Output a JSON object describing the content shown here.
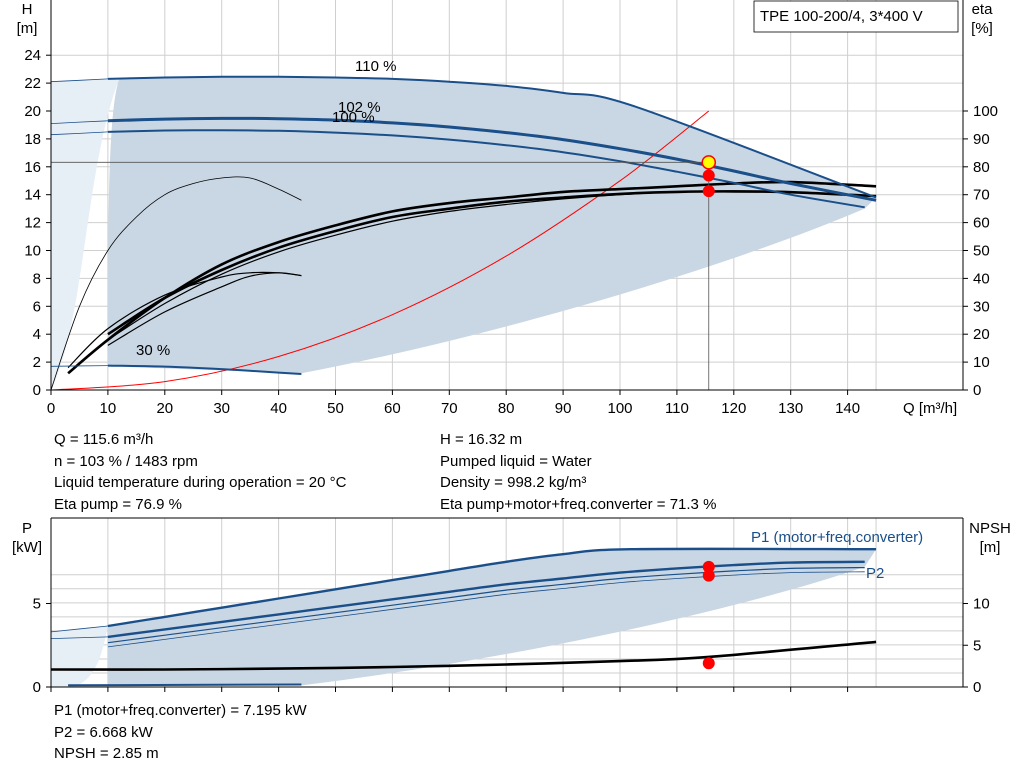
{
  "chart_data": [
    {
      "type": "line",
      "title": "TPE 100-200/4, 3*400 V",
      "xlabel": "Q [m³/h]",
      "ylabel": "H\n[m]",
      "ylabel_right": "eta\n[%]",
      "x_ticks": [
        "0",
        "10",
        "20",
        "30",
        "40",
        "50",
        "60",
        "70",
        "80",
        "90",
        "100",
        "110",
        "120",
        "130",
        "140"
      ],
      "y_ticks": [
        "0",
        "2",
        "4",
        "6",
        "8",
        "10",
        "12",
        "14",
        "16",
        "18",
        "20",
        "22",
        "24"
      ],
      "y2_ticks": [
        "0",
        "10",
        "20",
        "30",
        "40",
        "50",
        "60",
        "70",
        "80",
        "90",
        "100"
      ],
      "xlim": [
        0,
        150
      ],
      "ylim": [
        0,
        25
      ],
      "y2lim": [
        0,
        100
      ],
      "grid": true,
      "colors": {
        "curve": "#1a4f8a",
        "envelope": "#c9d6e3",
        "envelope_light": "#e6eef6",
        "eta": "#000000",
        "system": "#ff0000",
        "point": "#ff0000"
      },
      "series": [
        {
          "name": "110 %",
          "x": [
            0,
            10,
            20,
            30,
            40,
            50,
            60,
            70,
            80,
            90,
            102.8,
            145
          ],
          "values": [
            22.1,
            22.3,
            22.4,
            22.45,
            22.45,
            22.4,
            22.3,
            22.1,
            21.8,
            21.3,
            20.3,
            13.8
          ]
        },
        {
          "name": "102 %",
          "x": [
            0,
            10,
            20,
            30,
            40,
            50,
            60,
            70,
            80,
            90,
            100,
            110,
            120,
            130,
            145
          ],
          "values": [
            19.1,
            19.3,
            19.42,
            19.47,
            19.45,
            19.35,
            19.15,
            18.85,
            18.45,
            17.95,
            17.3,
            16.55,
            15.7,
            14.8,
            13.6
          ]
        },
        {
          "name": "100 %",
          "x": [
            0,
            10,
            20,
            30,
            40,
            50,
            60,
            70,
            80,
            90,
            100,
            110,
            120,
            130,
            143
          ],
          "values": [
            18.3,
            18.5,
            18.6,
            18.62,
            18.58,
            18.45,
            18.25,
            17.95,
            17.55,
            17.05,
            16.4,
            15.65,
            14.85,
            14.0,
            13.1
          ]
        },
        {
          "name": "30 %",
          "x": [
            0,
            10,
            20,
            30,
            40,
            44
          ],
          "values": [
            1.7,
            1.75,
            1.68,
            1.5,
            1.25,
            1.15
          ]
        }
      ],
      "eta_curves": [
        {
          "x": [
            0,
            5,
            10,
            15,
            20,
            25,
            30,
            35,
            40,
            44
          ],
          "values": [
            0,
            30,
            50,
            62,
            70,
            74,
            76,
            76,
            72,
            68
          ]
        },
        {
          "x": [
            3,
            10,
            20,
            30,
            40,
            50,
            60,
            70,
            80,
            90,
            100,
            110,
            120,
            130,
            145
          ],
          "values": [
            6,
            18,
            33,
            45,
            53,
            59,
            64,
            67,
            69,
            71,
            72,
            73,
            74,
            74.5,
            73
          ]
        },
        {
          "x": [
            10,
            20,
            30,
            40,
            50,
            60,
            70,
            80,
            90,
            100,
            110,
            120,
            130,
            145
          ],
          "values": [
            20,
            33,
            43,
            51,
            57,
            62,
            65,
            67.5,
            69,
            70.3,
            71,
            71.2,
            70.9,
            69.5
          ]
        },
        {
          "x": [
            10,
            20,
            30,
            40,
            50,
            60,
            70,
            80,
            90,
            100,
            110,
            120,
            130,
            145
          ],
          "values": [
            18,
            31,
            41.5,
            49.5,
            55.5,
            60.5,
            64,
            66.5,
            68.5,
            70,
            71,
            71.4,
            71,
            69.5
          ]
        },
        {
          "x": [
            3,
            10,
            20,
            30,
            35,
            40,
            44
          ],
          "values": [
            8,
            22,
            34,
            40.5,
            42,
            42,
            41
          ]
        },
        {
          "x": [
            10,
            20,
            30,
            35,
            40,
            44
          ],
          "values": [
            16,
            28,
            37,
            40.8,
            42,
            41
          ]
        }
      ],
      "system_curve": {
        "x": [
          0,
          20,
          40,
          60,
          80,
          100,
          115.6
        ],
        "values": [
          0,
          0.6,
          2.4,
          5.4,
          9.6,
          15.0,
          20.0
        ]
      },
      "operating_points": [
        {
          "x": 115.6,
          "y": 16.32,
          "marker": "yellow-circle"
        },
        {
          "x": 115.6,
          "y2": 76.9
        },
        {
          "x": 115.6,
          "y2": 71.3
        }
      ],
      "annotations": [
        "110 %",
        "102 %",
        "100 %",
        "30 %"
      ]
    },
    {
      "type": "line",
      "ylabel": "P\n[kW]",
      "ylabel_right": "NPSH\n[m]",
      "y_ticks": [
        "0",
        "5"
      ],
      "y2_ticks": [
        "0",
        "5",
        "10"
      ],
      "xlim": [
        0,
        150
      ],
      "ylim": [
        0,
        8.5
      ],
      "y2lim": [
        0,
        20
      ],
      "grid": true,
      "series": [
        {
          "name": "P1 (motor+freq.converter)",
          "x": [
            0,
            10,
            20,
            30,
            40,
            50,
            60,
            70,
            80,
            90,
            102,
            145
          ],
          "values": [
            3.3,
            3.65,
            4.2,
            4.75,
            5.3,
            5.85,
            6.4,
            6.95,
            7.5,
            7.95,
            8.25,
            8.25
          ]
        },
        {
          "name": "P2",
          "x": [
            0,
            10,
            20,
            30,
            40,
            50,
            60,
            70,
            80,
            90,
            100,
            110,
            120,
            130,
            143
          ],
          "values": [
            2.9,
            3.0,
            3.45,
            3.9,
            4.35,
            4.8,
            5.25,
            5.7,
            6.15,
            6.5,
            6.85,
            7.1,
            7.3,
            7.45,
            7.5
          ]
        }
      ],
      "npsh": {
        "x": [
          0,
          20,
          40,
          60,
          80,
          100,
          115.6,
          145
        ],
        "values": [
          2.1,
          2.1,
          2.2,
          2.4,
          2.7,
          3.1,
          3.6,
          5.4
        ]
      },
      "operating_points": [
        {
          "x": 115.6,
          "y": 7.195
        },
        {
          "x": 115.6,
          "y": 6.668
        },
        {
          "x": 115.6,
          "y2": 2.85
        }
      ]
    }
  ],
  "info_main": {
    "left": [
      "Q = 115.6 m³/h",
      "n = 103 % / 1483 rpm",
      "Liquid temperature during operation = 20 °C",
      "Eta pump = 76.9 %"
    ],
    "right": [
      "H = 16.32 m",
      "Pumped liquid = Water",
      "Density = 998.2 kg/m³",
      "Eta pump+motor+freq.converter = 71.3 %"
    ]
  },
  "info_power": [
    "P1 (motor+freq.converter) = 7.195 kW",
    "P2 = 6.668 kW",
    "NPSH = 2.85 m"
  ],
  "labels": {
    "p1": "P1 (motor+freq.converter)",
    "p2": "P2"
  }
}
